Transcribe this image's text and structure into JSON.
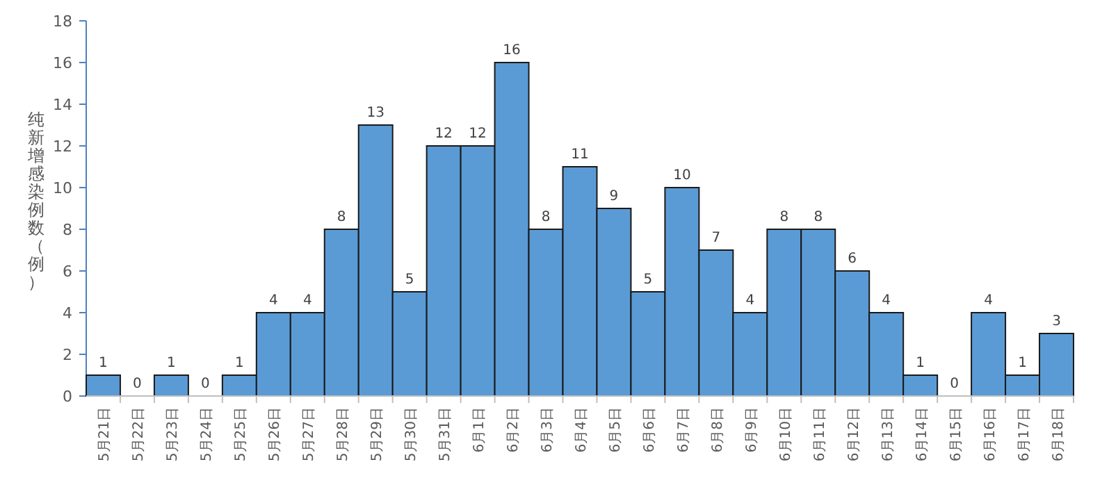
{
  "chart_data": {
    "type": "bar",
    "ylabel": "纯新增感染例数（例）",
    "categories": [
      "5月21日",
      "5月22日",
      "5月23日",
      "5月24日",
      "5月25日",
      "5月26日",
      "5月27日",
      "5月28日",
      "5月29日",
      "5月30日",
      "5月31日",
      "6月1日",
      "6月2日",
      "6月3日",
      "6月4日",
      "6月5日",
      "6月6日",
      "6月7日",
      "6月8日",
      "6月9日",
      "6月10日",
      "6月11日",
      "6月12日",
      "6月13日",
      "6月14日",
      "6月15日",
      "6月16日",
      "6月17日",
      "6月18日"
    ],
    "values": [
      1,
      0,
      1,
      0,
      1,
      4,
      4,
      8,
      13,
      5,
      12,
      12,
      16,
      8,
      11,
      9,
      5,
      10,
      7,
      4,
      8,
      8,
      6,
      4,
      1,
      0,
      4,
      1,
      3
    ],
    "color": "#5b9bd5",
    "ylim": [
      0,
      18
    ],
    "yticks": [
      0,
      2,
      4,
      6,
      8,
      10,
      12,
      14,
      16,
      18
    ],
    "grid": false,
    "data_labels": true
  }
}
